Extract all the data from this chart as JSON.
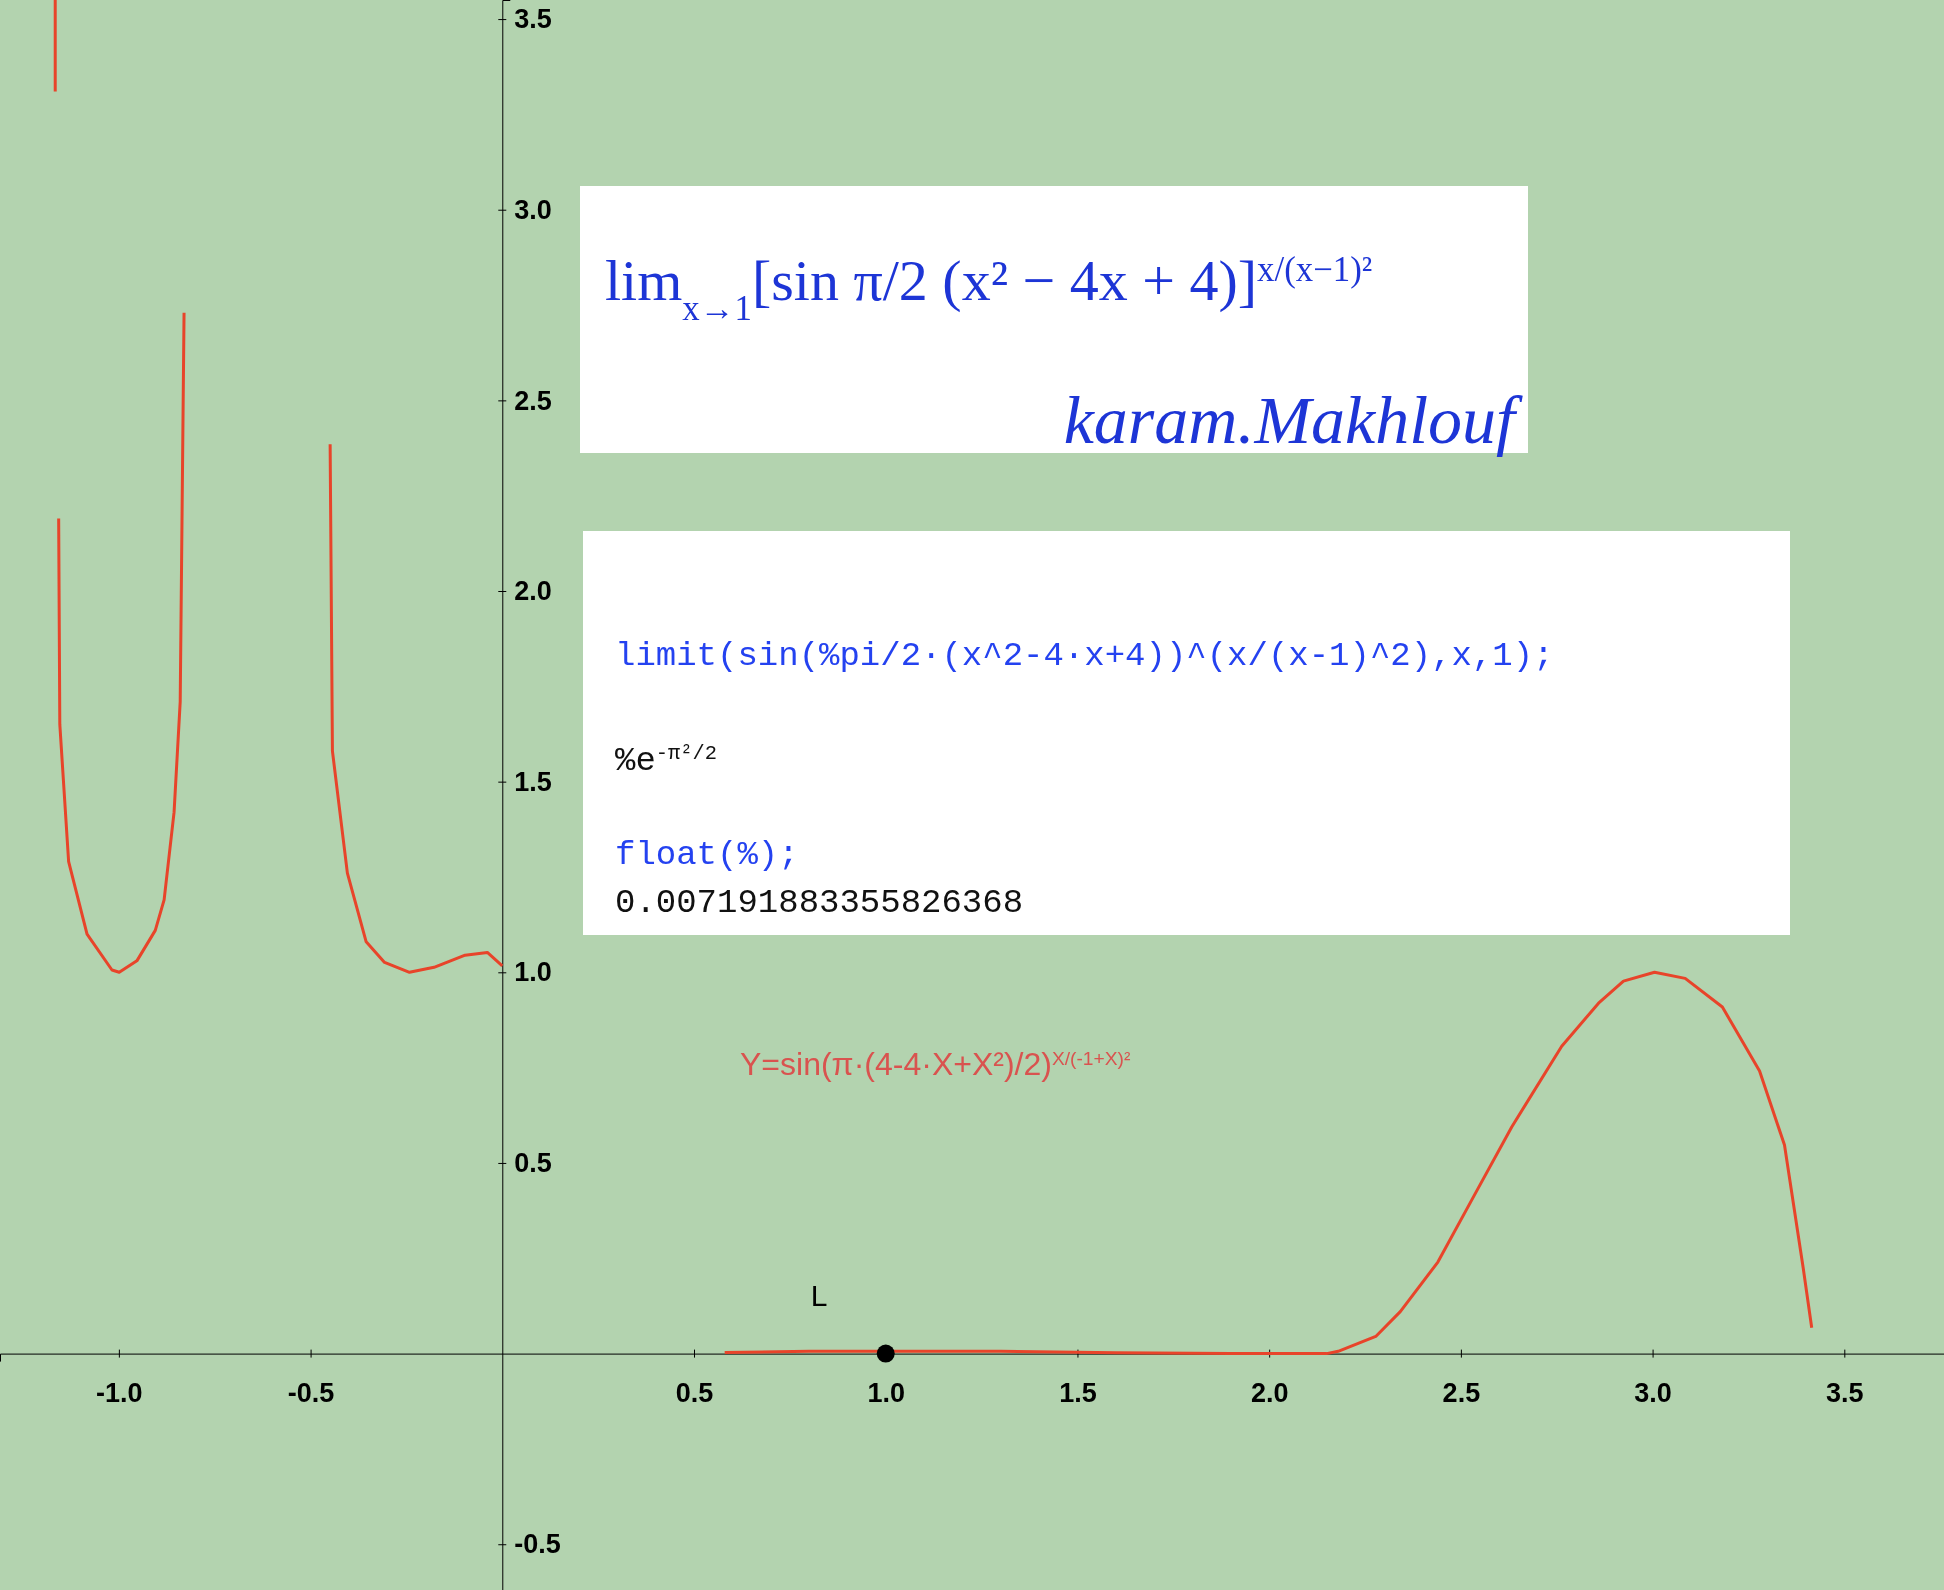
{
  "chart_data": {
    "type": "line",
    "xlim": [
      -1.31,
      3.76
    ],
    "ylim": [
      -0.62,
      3.55
    ],
    "xticks": [
      {
        "value": -1.0,
        "label": "-1.0"
      },
      -0.5,
      {
        "value": 0.5,
        "label": "0.5"
      },
      {
        "value": 1.0,
        "label": "1.0"
      },
      {
        "value": 1.5,
        "label": "1.5"
      },
      {
        "value": 2.0,
        "label": "2.0"
      },
      {
        "value": 2.5,
        "label": "2.5"
      },
      {
        "value": 3.0,
        "label": "3.0"
      },
      {
        "value": 3.5,
        "label": "3.5"
      }
    ],
    "yticks": [
      -0.5,
      0.5,
      {
        "value": 1.0,
        "label": "1.0"
      },
      {
        "value": 1.5,
        "label": "1.5"
      },
      {
        "value": 2.0,
        "label": "2.0"
      },
      {
        "value": 2.5,
        "label": "2.5"
      },
      {
        "value": 3.0,
        "label": "3.0"
      },
      {
        "value": 3.5,
        "label": "3.5"
      }
    ],
    "grid": false,
    "marker": "none",
    "line_style": "solid",
    "series": [
      {
        "color": "#e8442a",
        "x": [
          -1.166,
          -1.166
        ],
        "values": [
          3.55,
          3.31
        ]
      },
      {
        "color": "#e8442a",
        "x": [
          -1.157,
          -1.154,
          -1.131,
          -1.083,
          -1.018,
          -0.999,
          -0.953,
          -0.905,
          -0.882,
          -0.856,
          -0.84,
          -0.83
        ],
        "values": [
          2.19,
          1.65,
          1.29,
          1.1,
          1.006,
          1.0,
          1.03,
          1.11,
          1.19,
          1.42,
          1.71,
          2.73
        ]
      },
      {
        "color": "#e8442a",
        "x": [
          -0.449,
          -0.443,
          -0.404,
          -0.355,
          -0.307,
          -0.242,
          -0.178,
          -0.097,
          -0.039,
          0.0
        ],
        "values": [
          2.385,
          1.58,
          1.26,
          1.08,
          1.026,
          1.0,
          1.013,
          1.045,
          1.052,
          1.017
        ]
      },
      {
        "color": "#e8442a",
        "x": [
          0.58,
          0.8,
          1.0,
          1.3,
          1.6,
          1.9,
          2.15,
          2.18,
          2.278,
          2.342,
          2.44,
          2.536,
          2.633,
          2.763,
          2.859,
          2.924,
          3.005,
          3.085,
          3.182,
          3.279,
          3.344,
          3.393,
          3.415
        ],
        "values": [
          0.003,
          0.006,
          null,
          0.006,
          0.002,
          0.0,
          0.0,
          0.006,
          0.045,
          0.11,
          0.24,
          0.417,
          0.595,
          0.806,
          0.919,
          0.977,
          1.0,
          0.984,
          0.909,
          0.741,
          0.547,
          0.223,
          0.068
        ]
      },
      {
        "type": "scatter",
        "marker": "circle",
        "name": "L",
        "color": "#000000",
        "x": [
          1.0
        ],
        "values": [
          0.0
        ]
      }
    ],
    "annotations": [
      "lim$_{x→1}$[sin π/2 (x² − 4x + 4)]$^{x/(x−1)²}$",
      "karam.Makhlouf",
      "limit(sin(%pi/2·(x^2-4·x+4))^(x/(x-1)^2),x,1);",
      "%e$^{-π²/2}$",
      "float(%);",
      "0.007191883355826368",
      "Y=sin(π·(4-4·X+X²)/2)$^{X/(-1+X)²}$"
    ]
  }
}
